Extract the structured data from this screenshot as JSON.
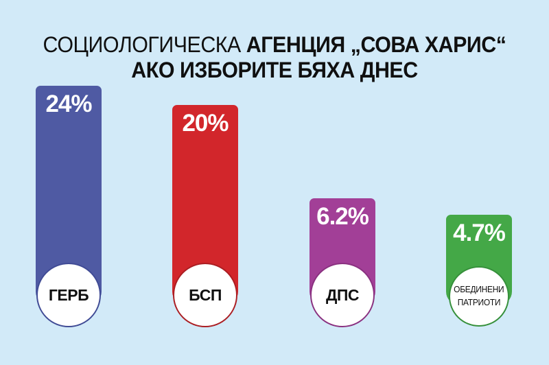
{
  "background_color": "#d2eaf8",
  "title": {
    "line1_light": "СОЦИОЛОГИЧЕСКА",
    "line1_bold": "АГЕНЦИЯ „СОВА ХАРИС“",
    "line2": "АКО ИЗБОРИТЕ БЯХА ДНЕС"
  },
  "chart_data": {
    "type": "bar",
    "title": "СОЦИОЛОГИЧЕСКА АГЕНЦИЯ „СОВА ХАРИС“ — АКО ИЗБОРИТЕ БЯХА ДНЕС",
    "categories": [
      "ГЕРБ",
      "БСП",
      "ДПС",
      "ОБЕДИНЕНИ ПАТРИОТИ"
    ],
    "values": [
      24,
      20,
      6.2,
      4.7
    ],
    "unit": "%",
    "legend_position": "none",
    "grid": false,
    "bars": [
      {
        "party": "ГЕРБ",
        "value": 24,
        "value_label": "24%",
        "color": "#4f5aa3",
        "border_color": "#404b95",
        "label_lines": [
          "ГЕРБ"
        ],
        "top_px": "125px"
      },
      {
        "party": "БСП",
        "value": 20,
        "value_label": "20%",
        "color": "#d2262b",
        "border_color": "#ab1e23",
        "label_lines": [
          "БСП"
        ],
        "top_px": "153px"
      },
      {
        "party": "ДПС",
        "value": 6.2,
        "value_label": "6.2%",
        "color": "#a23f97",
        "border_color": "#8a3180",
        "label_lines": [
          "ДПС"
        ],
        "top_px": "289px"
      },
      {
        "party": "ОБЕДИНЕНИ ПАТРИОТИ",
        "value": 4.7,
        "value_label": "4.7%",
        "color": "#44a847",
        "border_color": "#36903b",
        "label_lines": [
          "ОБЕДИНЕНИ",
          "ПАТРИОТИ"
        ],
        "top_px": "313px"
      }
    ]
  }
}
